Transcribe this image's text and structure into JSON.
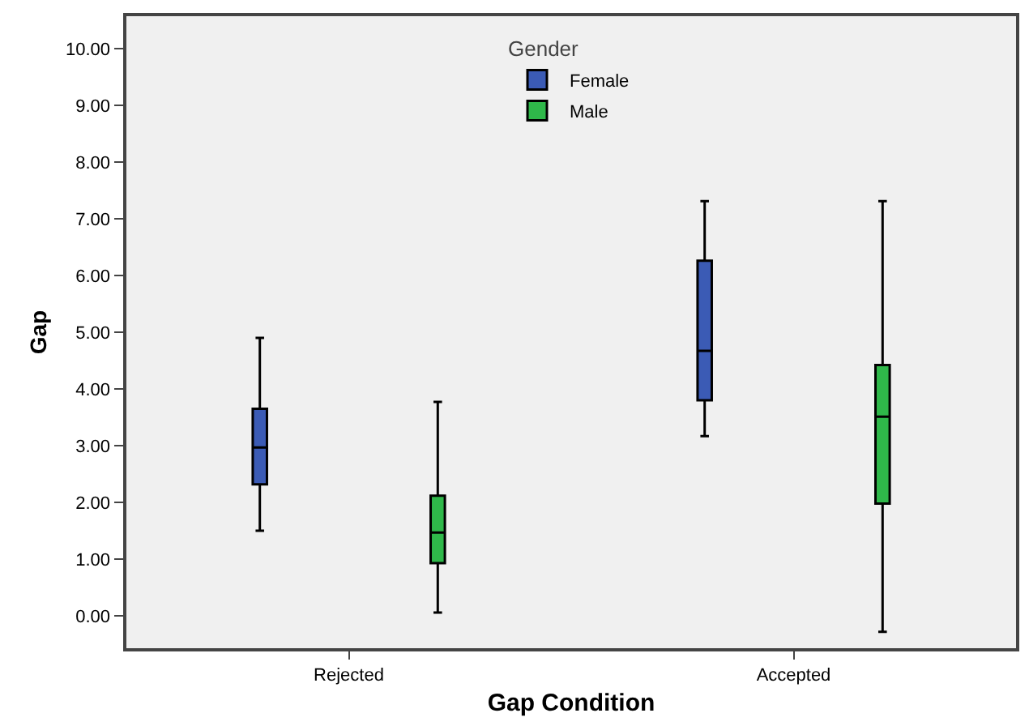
{
  "chart_data": {
    "type": "box",
    "xlabel": "Gap Condition",
    "ylabel": "Gap",
    "legend_title": "Gender",
    "categories": [
      "Rejected",
      "Accepted"
    ],
    "ylim": [
      -0.57,
      10.57
    ],
    "yticks": [
      {
        "value": 0,
        "label": "0.00"
      },
      {
        "value": 1,
        "label": "1.00"
      },
      {
        "value": 2,
        "label": "2.00"
      },
      {
        "value": 3,
        "label": "3.00"
      },
      {
        "value": 4,
        "label": "4.00"
      },
      {
        "value": 5,
        "label": "5.00"
      },
      {
        "value": 6,
        "label": "6.00"
      },
      {
        "value": 7,
        "label": "7.00"
      },
      {
        "value": 8,
        "label": "8.00"
      },
      {
        "value": 9,
        "label": "9.00"
      },
      {
        "value": 10,
        "label": "10.00"
      }
    ],
    "grid": false,
    "legend": "top",
    "series": [
      {
        "name": "Female",
        "color": "#3b5bb5",
        "boxes": [
          {
            "low": 1.5,
            "q1": 2.32,
            "median": 2.97,
            "q3": 3.65,
            "high": 4.9
          },
          {
            "low": 3.17,
            "q1": 3.8,
            "median": 4.67,
            "q3": 6.26,
            "high": 7.31
          }
        ]
      },
      {
        "name": "Male",
        "color": "#2fb84a",
        "boxes": [
          {
            "low": 0.06,
            "q1": 0.93,
            "median": 1.47,
            "q3": 2.12,
            "high": 3.77
          },
          {
            "low": -0.28,
            "q1": 1.98,
            "median": 3.51,
            "q3": 4.42,
            "high": 7.31
          }
        ]
      }
    ]
  }
}
